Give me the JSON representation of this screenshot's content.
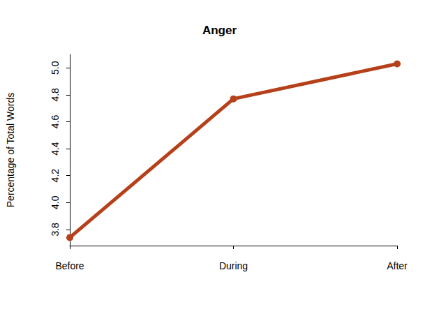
{
  "chart_data": {
    "type": "line",
    "title": "Anger",
    "y_label": "Percentage of Total Words",
    "categories": [
      "Before",
      "During",
      "After"
    ],
    "values": [
      3.74,
      4.77,
      5.03
    ],
    "color": "#b5401a",
    "marker": "circle",
    "line_style": "solid",
    "ylim": [
      3.68,
      5.1
    ],
    "yticks": [
      3.8,
      {
        "value": 4,
        "label": "4.0"
      },
      4.2,
      4.4,
      4.6,
      4.8,
      {
        "value": 5,
        "label": "5.0"
      }
    ],
    "grid": false
  }
}
